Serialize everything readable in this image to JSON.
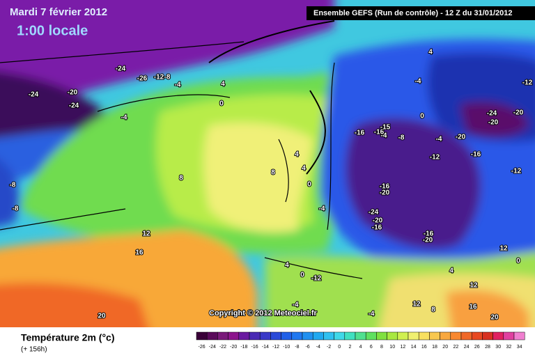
{
  "header": {
    "date": "Mardi 7 février 2012",
    "time": "1:00 locale",
    "run": "Ensemble GEFS (Run de contrôle)  -  12 Z du 31/01/2012"
  },
  "copyright": "Copyright © 2012 Meteociel.fr",
  "legend": {
    "title": "Température 2m (°c)",
    "lead": "(+ 156h)",
    "values": [
      -26,
      -24,
      -22,
      -20,
      -18,
      -16,
      -14,
      -12,
      -10,
      -8,
      -6,
      -4,
      -2,
      0,
      2,
      4,
      6,
      8,
      10,
      12,
      14,
      16,
      18,
      20,
      22,
      24,
      26,
      28,
      30,
      32,
      34
    ],
    "colors": [
      "#3a0038",
      "#5a0a5a",
      "#7a1a7a",
      "#8c148c",
      "#6a1aa0",
      "#4a2ab4",
      "#3a3ac8",
      "#2a4ad8",
      "#2060e8",
      "#2078f0",
      "#2090f0",
      "#20a8f0",
      "#30c0f0",
      "#40d8e8",
      "#40e0c0",
      "#50e090",
      "#60e060",
      "#80e040",
      "#a8e840",
      "#d0f050",
      "#f0f070",
      "#f8e060",
      "#f8c850",
      "#f8a840",
      "#f88830",
      "#f06828",
      "#e84820",
      "#d83020",
      "#e02060",
      "#e040a0",
      "#f080d0"
    ]
  },
  "map": {
    "labels": [
      -24,
      -20,
      -24,
      -24,
      -26,
      -12,
      -8,
      -4,
      4,
      0,
      -4,
      -8,
      -8,
      8,
      12,
      16,
      20,
      4,
      -4,
      -12,
      0,
      -24,
      -20,
      -20,
      -16,
      -16,
      -15,
      -4,
      -8,
      4,
      8,
      4,
      0,
      -4,
      -24,
      -20,
      -16,
      -16,
      -20,
      -16,
      -20,
      -16,
      -12,
      -20,
      -12,
      -4,
      4,
      0,
      -12,
      12,
      8,
      16,
      20,
      12,
      12,
      -4,
      -4,
      4,
      0
    ]
  }
}
